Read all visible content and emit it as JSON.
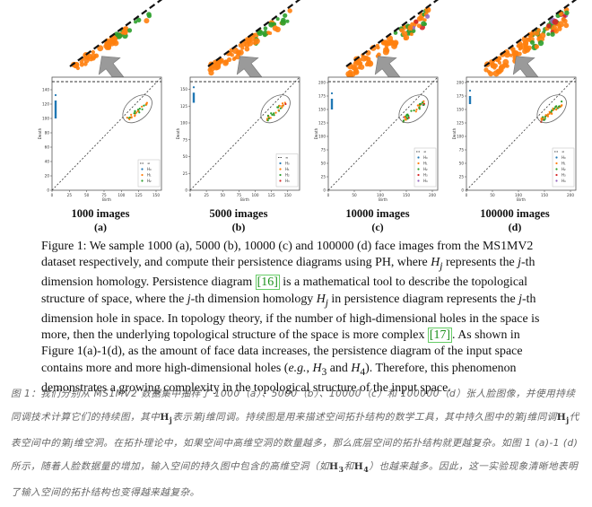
{
  "panels": [
    {
      "id": "a",
      "count_label": "1000 images",
      "letter": "(a)",
      "max": 150,
      "yticks": [
        0,
        20,
        40,
        60,
        80,
        100,
        120,
        140
      ],
      "xticks": [
        0,
        25,
        50,
        75,
        100,
        125,
        150
      ],
      "legend": [
        "∞",
        "H₀",
        "H₁",
        "H₂"
      ],
      "h0_range": [
        100,
        125
      ],
      "has_h3": false,
      "has_h4": false
    },
    {
      "id": "b",
      "count_label": "5000 images",
      "letter": "(b)",
      "max": 160,
      "yticks": [
        0,
        25,
        50,
        75,
        100,
        125,
        150
      ],
      "xticks": [
        0,
        25,
        50,
        75,
        100,
        125,
        150
      ],
      "legend": [
        "∞",
        "H₀",
        "H₁",
        "H₂",
        "H₃"
      ],
      "h0_range": [
        130,
        145
      ],
      "has_h3": true,
      "has_h4": false
    },
    {
      "id": "c",
      "count_label": "10000 images",
      "letter": "(c)",
      "max": 200,
      "yticks": [
        0,
        25,
        50,
        75,
        100,
        125,
        150,
        175,
        200
      ],
      "xticks": [
        0,
        50,
        100,
        150,
        200
      ],
      "legend": [
        "∞",
        "H₀",
        "H₁",
        "H₂",
        "H₃",
        "H₄"
      ],
      "h0_range": [
        150,
        170
      ],
      "has_h3": true,
      "has_h4": true
    },
    {
      "id": "d",
      "count_label": "100000 images",
      "letter": "(d)",
      "max": 200,
      "yticks": [
        0,
        25,
        50,
        75,
        100,
        125,
        150,
        175,
        200
      ],
      "xticks": [
        0,
        50,
        100,
        150,
        200
      ],
      "legend": [
        "∞",
        "H₀",
        "H₁",
        "H₂",
        "H₃",
        "H₄"
      ],
      "h0_range": [
        160,
        175
      ],
      "has_h3": true,
      "has_h4": true
    }
  ],
  "axis_labels": {
    "x": "Birth",
    "y": "Death"
  },
  "colors": {
    "H0": "#1f77b4",
    "H1": "#ff7f0e",
    "H2": "#2ca02c",
    "H3": "#d62728",
    "H4": "#9467bd",
    "arrow": "#9a9a9a"
  },
  "caption_en": {
    "p1": "Figure 1: We sample 1000 (a), 5000 (b), 10000 (c) and 100000 (d) face images from the MS1MV2 dataset respectively, and compute their persistence diagrams using PH, where ",
    "Hj": "H",
    "j": "j",
    "p2": " represents the ",
    "p3": "-th dimension homology. Persistence diagram ",
    "ref16": "[16]",
    "p4": " is a mathematical tool to describe the topological structure of space, where the ",
    "p5": "-th dimension homology ",
    "p6": " in persistence diagram represents the ",
    "p7": "-th dimension hole in space. In topology theory, if the number of high-dimensional holes in the space is more, then the underlying topological structure of the space is more complex ",
    "ref17": "[17]",
    "p8": ". As shown in Figure 1(a)-1(d), as the amount of face data increases, the persistence diagram of the input space contains more and more high-dimensional holes (",
    "eg": "e.g.",
    "p9": ", ",
    "H3": "H",
    "three": "3",
    "and": " and ",
    "H4": "H",
    "four": "4",
    "p10": "). Therefore, this phenomenon demonstrates a growing complexity in the topological structure of the input space."
  },
  "caption_zh": {
    "z1": "图 1：我们分别从 MS1MV2 数据集中抽样了 1000（a）、5000（b）、10000（c）和 100000（d）张人脸图像，并使用持续同调技术计算它们的持续图，其中",
    "Hj": "H",
    "j": "j",
    "z2": "表示第j维同调。持续图是用来描述空间拓扑结构的数学工具，其中持久图中的第j维同调",
    "z3": "代表空间中的第j维空洞。在拓扑理论中，如果空间中高维空洞的数量越多，那么底层空间的拓扑结构就更越复杂。如图 1 (a)-1 (d) 所示，随着人脸数据量的增加，输入空间的持久图中包含的高维空洞（如",
    "H3": "H",
    "three": "3",
    "and": "和",
    "H4": "H",
    "four": "4",
    "z4": "）也越来越多。因此，这一实验现象清晰地表明了输入空间的拓扑结构也变得越来越复杂。"
  }
}
